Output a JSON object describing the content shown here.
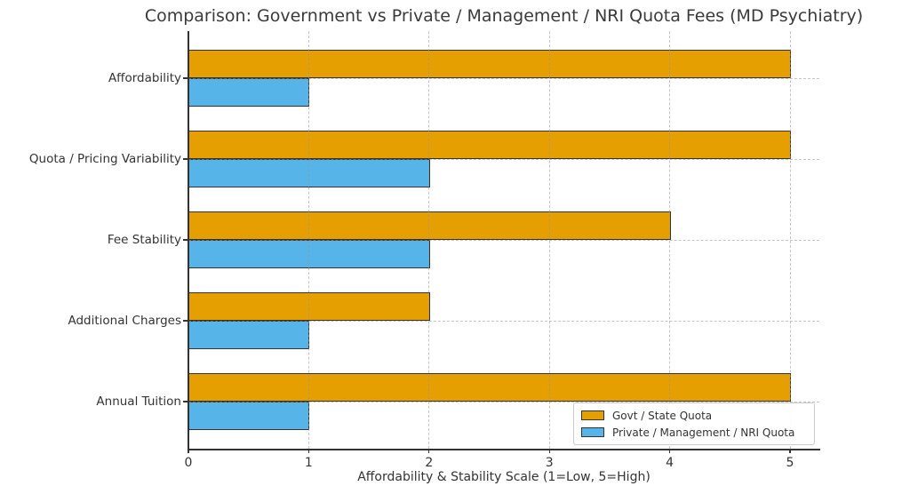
{
  "chart_data": {
    "type": "bar",
    "orientation": "horizontal",
    "title": "Comparison: Government vs Private / Management / NRI Quota Fees (MD Psychiatry)",
    "xlabel": "Affordability & Stability Scale (1=Low, 5=High)",
    "categories": [
      "Affordability",
      "Quota / Pricing Variability",
      "Fee Stability",
      "Additional Charges",
      "Annual Tuition"
    ],
    "series": [
      {
        "name": "Govt / State Quota",
        "color": "#E69F00",
        "values": [
          5,
          5,
          4,
          2,
          5
        ]
      },
      {
        "name": "Private / Management / NRI Quota",
        "color": "#56B4E9",
        "values": [
          1,
          2,
          2,
          1,
          1
        ]
      }
    ],
    "xticks": [
      0,
      1,
      2,
      3,
      4,
      5
    ],
    "xlim": [
      0,
      5.25
    ],
    "grid": true,
    "legend_position": "lower right",
    "colors": {
      "govt_quota": "#E69F00",
      "private_quota": "#56B4E9",
      "bar_edge": "#333333",
      "text": "#333333"
    }
  }
}
